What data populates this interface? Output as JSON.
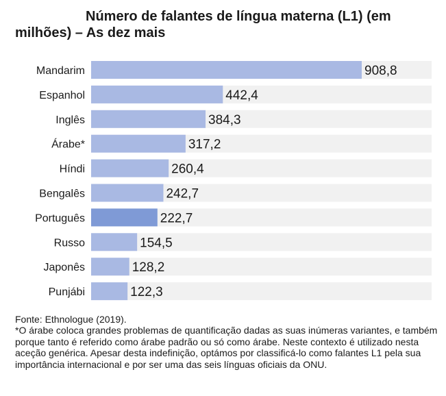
{
  "chart_data": {
    "type": "bar",
    "orientation": "horizontal",
    "title": "Número de falantes de língua materna (L1) (em milhões) – As dez mais",
    "categories": [
      "Mandarim",
      "Espanhol",
      "Inglês",
      "Árabe*",
      "Híndi",
      "Bengalês",
      "Português",
      "Russo",
      "Japonês",
      "Punjábi"
    ],
    "values": [
      908.8,
      442.4,
      384.3,
      317.2,
      260.4,
      242.7,
      222.7,
      154.5,
      128.2,
      122.3
    ],
    "value_labels": [
      "908,8",
      "442,4",
      "384,3",
      "317,2",
      "260,4",
      "242,7",
      "222,7",
      "154,5",
      "128,2",
      "122,3"
    ],
    "highlighted_category": "Português",
    "xlim": [
      0,
      908.8
    ],
    "grid": false,
    "legend": "none",
    "colors": {
      "bar": "#a9b9e3",
      "bar_highlight": "#7f9ad6",
      "track": "#f1f1f1"
    }
  },
  "notes": {
    "source": "Fonte: Ethnologue (2019).",
    "footnote": "*O árabe coloca grandes problemas de quantificação dadas as suas inúmeras variantes, e também porque tanto é referido como árabe padrão ou só como árabe. Neste contexto é utilizado nesta aceção genérica. Apesar desta indefinição, optámos por classificá-lo como falantes L1 pela sua importância internacional e por ser uma das seis línguas oficiais da ONU."
  }
}
